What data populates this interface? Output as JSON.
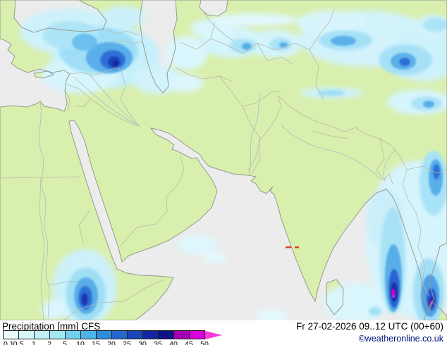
{
  "header": {
    "product": "Precipitation",
    "unit": "[mm]",
    "model": "CFS",
    "valid_datetime": "Fr 27-02-2026 09..12 UTC (00+60)",
    "copyright": "©weatheronline.co.uk"
  },
  "legend": {
    "labels": [
      "0.1",
      "0.5",
      "1",
      "2",
      "5",
      "10",
      "15",
      "20",
      "25",
      "30",
      "35",
      "40",
      "45",
      "50"
    ],
    "segment_colors": [
      "#eafcfc",
      "#d5f7f8",
      "#bef0f4",
      "#a0e7f2",
      "#74cfee",
      "#4db2e8",
      "#2f8cdc",
      "#2468cd",
      "#1947b8",
      "#12289f",
      "#0c1187",
      "#a300b6",
      "#d900d9"
    ],
    "arrow_color": "#f23cdc"
  },
  "map": {
    "colors": {
      "land": "#d9efad",
      "sea": "#ececec",
      "coast": "#939b90",
      "border": "#b9b9ab",
      "river": "#a9bcc9"
    }
  }
}
